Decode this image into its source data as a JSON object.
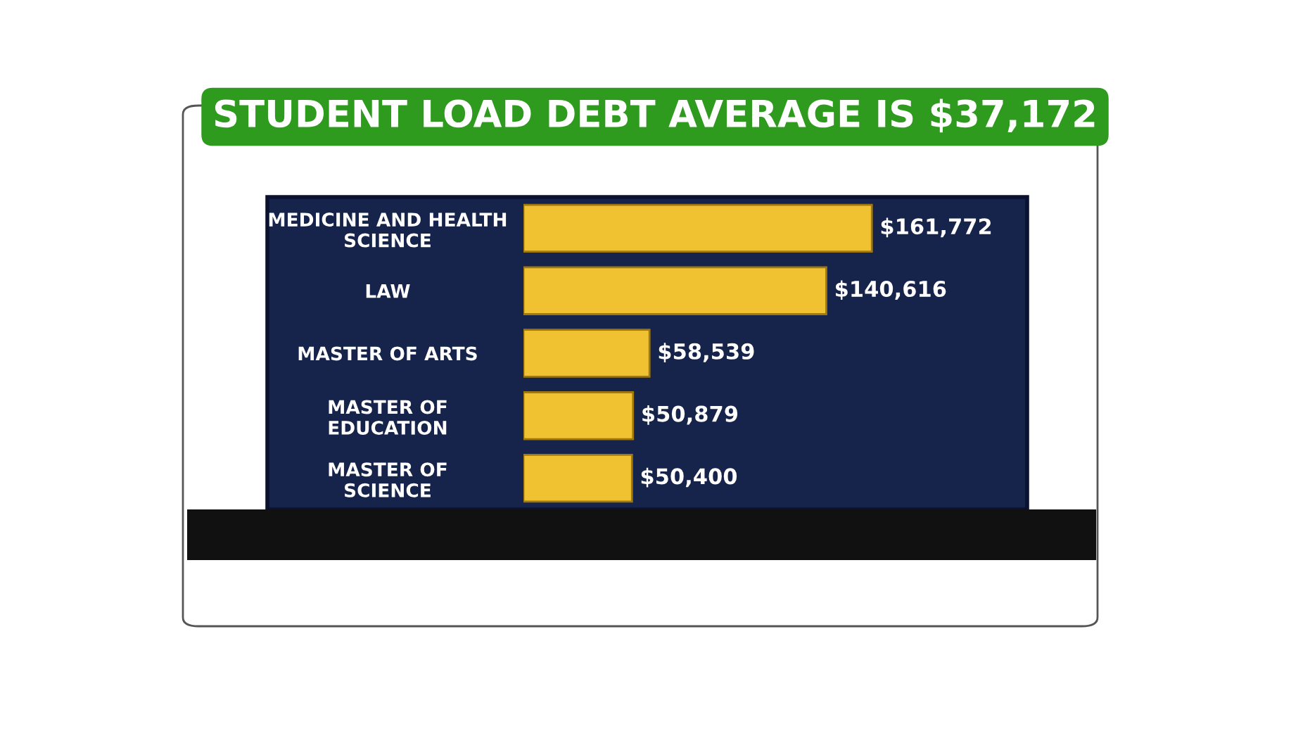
{
  "chart_data": {
    "type": "bar",
    "orientation": "horizontal",
    "title": "STUDENT LOAD DEBT AVERAGE IS $37,172",
    "categories": [
      "MEDICINE AND HEALTH\nSCIENCE",
      "LAW",
      "MASTER OF ARTS",
      "MASTER OF\nEDUCATION",
      "MASTER OF\nSCIENCE"
    ],
    "values": [
      161772,
      140616,
      58539,
      50879,
      50400
    ],
    "value_labels": [
      "$161,772",
      "$140,616",
      "$58,539",
      "$50,879",
      "$50,400"
    ],
    "color": "#f0c232",
    "tick_labels": "y"
  }
}
